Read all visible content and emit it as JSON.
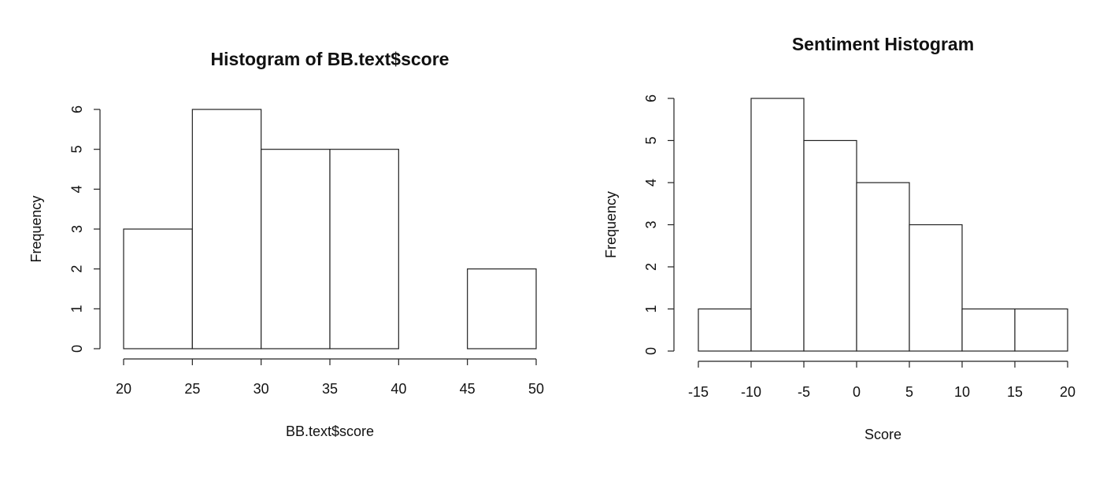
{
  "chart_data": [
    {
      "type": "histogram",
      "title": "Histogram of BB.text$score",
      "xlabel": "BB.text$score",
      "ylabel": "Frequency",
      "bins": [
        20,
        25,
        30,
        35,
        40,
        45,
        50
      ],
      "values": [
        3,
        6,
        5,
        5,
        0,
        2
      ],
      "xlim": [
        20,
        50
      ],
      "ylim": [
        0,
        6
      ],
      "xticks": [
        20,
        25,
        30,
        35,
        40,
        45,
        50
      ],
      "yticks": [
        0,
        1,
        2,
        3,
        4,
        5,
        6
      ]
    },
    {
      "type": "histogram",
      "title": "Sentiment Histogram",
      "xlabel": "Score",
      "ylabel": "Frequency",
      "bins": [
        -15,
        -10,
        -5,
        0,
        5,
        10,
        15,
        20
      ],
      "values": [
        1,
        6,
        5,
        4,
        3,
        1,
        1
      ],
      "xlim": [
        -15,
        20
      ],
      "ylim": [
        0,
        6
      ],
      "xticks": [
        -15,
        -10,
        -5,
        0,
        5,
        10,
        15,
        20
      ],
      "yticks": [
        0,
        1,
        2,
        3,
        4,
        5,
        6
      ]
    }
  ]
}
